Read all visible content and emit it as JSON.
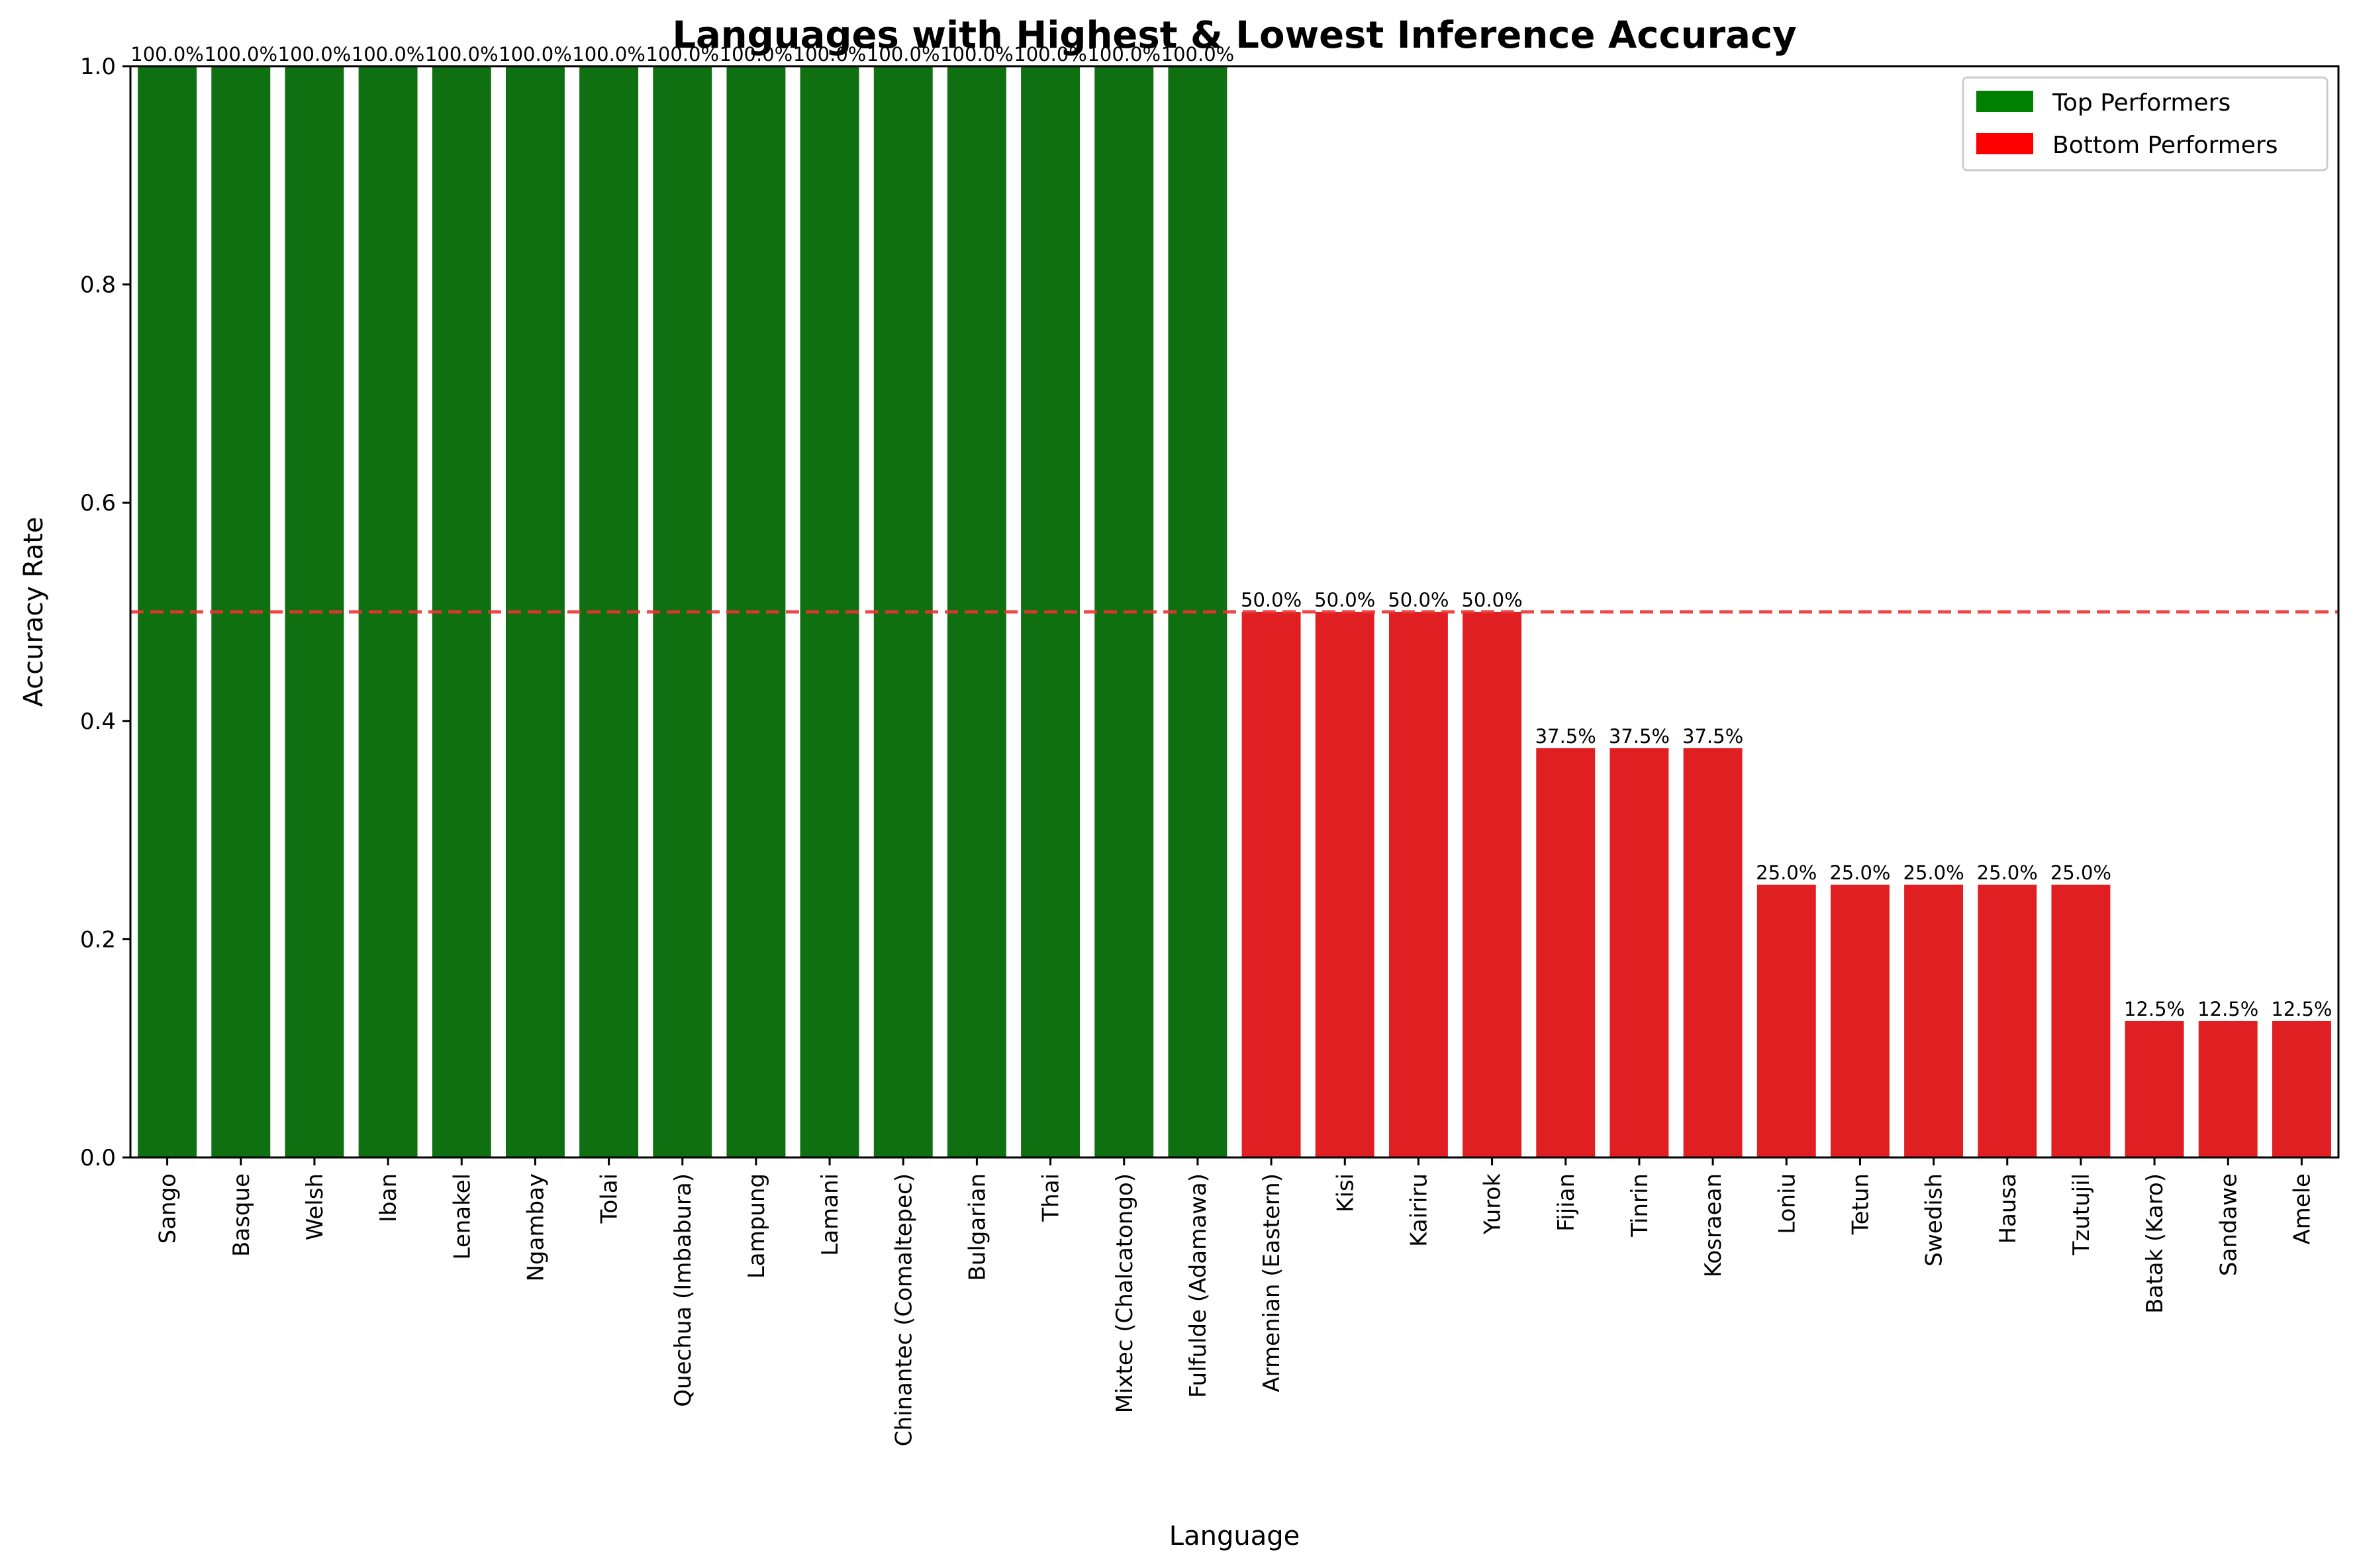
{
  "chart_data": {
    "type": "bar",
    "title": "Languages with Highest & Lowest Inference Accuracy",
    "xlabel": "Language",
    "ylabel": "Accuracy Rate",
    "ylim": [
      0,
      1.0
    ],
    "yticks": [
      "0.0",
      "0.2",
      "0.4",
      "0.6",
      "0.8",
      "1.0"
    ],
    "reference_line": 0.5,
    "legend_position": "top-right",
    "grid": false,
    "series": [
      {
        "name": "Top Performers",
        "color": "#0e7010",
        "legend_color": "#008000",
        "categories": [
          "Sango",
          "Basque",
          "Welsh",
          "Iban",
          "Lenakel",
          "Ngambay",
          "Tolai",
          "Quechua (Imbabura)",
          "Lampung",
          "Lamani",
          "Chinantec (Comaltepec)",
          "Bulgarian",
          "Thai",
          "Mixtec (Chalcatongo)",
          "Fulfulde (Adamawa)"
        ],
        "values": [
          1.0,
          1.0,
          1.0,
          1.0,
          1.0,
          1.0,
          1.0,
          1.0,
          1.0,
          1.0,
          1.0,
          1.0,
          1.0,
          1.0,
          1.0
        ],
        "labels": [
          "100.0%",
          "100.0%",
          "100.0%",
          "100.0%",
          "100.0%",
          "100.0%",
          "100.0%",
          "100.0%",
          "100.0%",
          "100.0%",
          "100.0%",
          "100.0%",
          "100.0%",
          "100.0%",
          "100.0%"
        ]
      },
      {
        "name": "Bottom Performers",
        "color": "#e01f22",
        "legend_color": "#ff0000",
        "categories": [
          "Armenian (Eastern)",
          "Kisi",
          "Kairiru",
          "Yurok",
          "Fijian",
          "Tinrin",
          "Kosraean",
          "Loniu",
          "Tetun",
          "Swedish",
          "Hausa",
          "Tzutujil",
          "Batak (Karo)",
          "Sandawe",
          "Amele"
        ],
        "values": [
          0.5,
          0.5,
          0.5,
          0.5,
          0.375,
          0.375,
          0.375,
          0.25,
          0.25,
          0.25,
          0.25,
          0.25,
          0.125,
          0.125,
          0.125
        ],
        "labels": [
          "50.0%",
          "50.0%",
          "50.0%",
          "50.0%",
          "37.5%",
          "37.5%",
          "37.5%",
          "25.0%",
          "25.0%",
          "25.0%",
          "25.0%",
          "25.0%",
          "12.5%",
          "12.5%",
          "12.5%"
        ]
      }
    ]
  }
}
